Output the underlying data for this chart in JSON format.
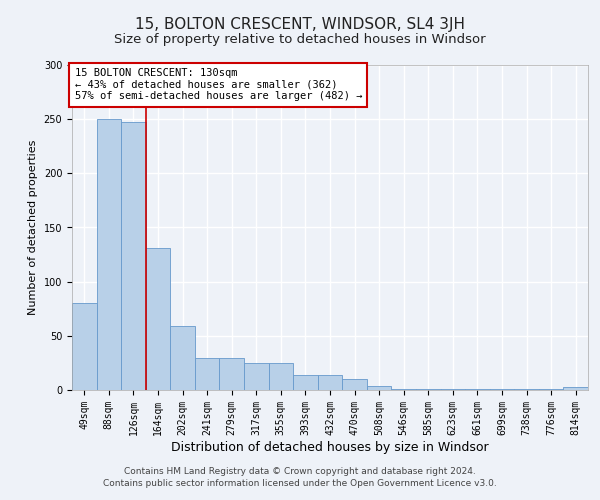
{
  "title": "15, BOLTON CRESCENT, WINDSOR, SL4 3JH",
  "subtitle": "Size of property relative to detached houses in Windsor",
  "xlabel": "Distribution of detached houses by size in Windsor",
  "ylabel": "Number of detached properties",
  "categories": [
    "49sqm",
    "88sqm",
    "126sqm",
    "164sqm",
    "202sqm",
    "241sqm",
    "279sqm",
    "317sqm",
    "355sqm",
    "393sqm",
    "432sqm",
    "470sqm",
    "508sqm",
    "546sqm",
    "585sqm",
    "623sqm",
    "661sqm",
    "699sqm",
    "738sqm",
    "776sqm",
    "814sqm"
  ],
  "values": [
    80,
    250,
    247,
    131,
    59,
    30,
    30,
    25,
    25,
    14,
    14,
    10,
    4,
    1,
    1,
    1,
    1,
    1,
    1,
    1,
    3
  ],
  "bar_color": "#b8d0e8",
  "bar_edge_color": "#6699cc",
  "property_line_x": 2.5,
  "annotation_title": "15 BOLTON CRESCENT: 130sqm",
  "annotation_line1": "← 43% of detached houses are smaller (362)",
  "annotation_line2": "57% of semi-detached houses are larger (482) →",
  "annotation_box_color": "#ffffff",
  "annotation_box_edge_color": "#cc0000",
  "vline_color": "#cc0000",
  "ylim": [
    0,
    300
  ],
  "yticks": [
    0,
    50,
    100,
    150,
    200,
    250,
    300
  ],
  "footer1": "Contains HM Land Registry data © Crown copyright and database right 2024.",
  "footer2": "Contains public sector information licensed under the Open Government Licence v3.0.",
  "bg_color": "#eef2f8",
  "plot_bg_color": "#eef2f8",
  "grid_color": "#ffffff",
  "title_fontsize": 11,
  "subtitle_fontsize": 9.5,
  "xlabel_fontsize": 9,
  "ylabel_fontsize": 8,
  "tick_fontsize": 7,
  "annotation_fontsize": 7.5,
  "footer_fontsize": 6.5
}
